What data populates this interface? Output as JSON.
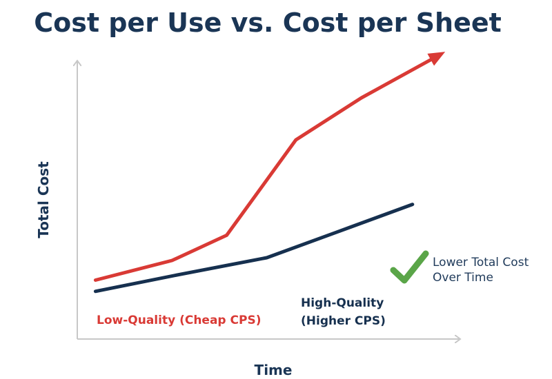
{
  "chart_data": {
    "type": "line",
    "title": "Cost per Use vs. Cost per Sheet",
    "xlabel": "Time",
    "ylabel": "Total Cost",
    "xlim": [
      0,
      100
    ],
    "ylim": [
      0,
      100
    ],
    "grid": false,
    "series": [
      {
        "name": "Low-Quality (Cheap CPS)",
        "color": "#d93a35",
        "end_arrow": true,
        "x": [
          5,
          26,
          41,
          60,
          78,
          99
        ],
        "y": [
          21,
          28,
          37,
          71,
          86,
          101
        ]
      },
      {
        "name": "High-Quality (Higher CPS)",
        "color": "#16304f",
        "end_arrow": false,
        "x": [
          5,
          28,
          52,
          71,
          92
        ],
        "y": [
          17,
          23,
          29,
          38,
          48
        ]
      }
    ],
    "annotation": {
      "icon": "checkmark-icon",
      "color": "#5aa548",
      "lines": [
        "Lower Total Cost",
        "Over Time"
      ]
    },
    "series_labels": {
      "low": [
        "Low-Quality (Cheap CPS)"
      ],
      "high": [
        "High-Quality",
        "(Higher CPS)"
      ]
    }
  }
}
